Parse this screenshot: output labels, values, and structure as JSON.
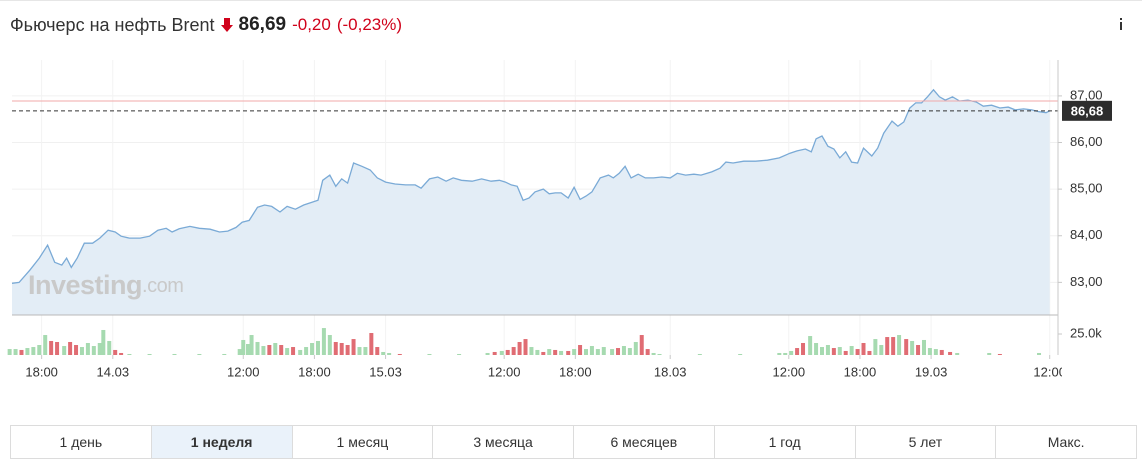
{
  "header": {
    "title": "Фьючерс на нефть Brent",
    "price": "86,69",
    "change": "-0,20",
    "change_pct": "(-0,23%)"
  },
  "watermark": {
    "brand": "Investing",
    "suffix": ".com"
  },
  "chart_data": [
    {
      "type": "area",
      "x": [
        -2.5,
        -1.9,
        -1.0,
        -0.2,
        0.5,
        1.1,
        1.7,
        2.1,
        2.5,
        3.0,
        3.6,
        4.3,
        4.9,
        5.6,
        6.2,
        6.7,
        7.4,
        8.3,
        9.1,
        9.8,
        10.5,
        11.0,
        11.6,
        12.5,
        13.3,
        14.2,
        15.0,
        15.7,
        16.4,
        16.9,
        17.5,
        18.2,
        18.8,
        19.4,
        20.1,
        20.7,
        21.4,
        22.1,
        22.8,
        23.3,
        23.7,
        24.3,
        24.8,
        25.3,
        25.8,
        26.3,
        27.0,
        27.7,
        28.3,
        29.0,
        29.8,
        30.7,
        31.5,
        32.0,
        32.7,
        33.4,
        34.1,
        34.7,
        35.4,
        36.3,
        37.1,
        37.9,
        38.6,
        39.1,
        39.6,
        40.1,
        40.6,
        41.1,
        41.6,
        42.3,
        42.8,
        43.3,
        43.8,
        44.4,
        44.9,
        45.4,
        45.9,
        46.4,
        47.1,
        47.8,
        48.2,
        48.7,
        49.2,
        49.7,
        50.3,
        50.9,
        51.6,
        52.3,
        53.0,
        53.6,
        54.3,
        55.0,
        55.6,
        56.5,
        57.2,
        57.7,
        58.3,
        59.2,
        60.2,
        61.2,
        62.2,
        63.1,
        63.7,
        64.4,
        64.9,
        65.3,
        65.8,
        66.3,
        66.8,
        67.3,
        67.8,
        68.3,
        68.8,
        69.3,
        70.0,
        70.5,
        71.0,
        71.7,
        72.2,
        72.7,
        73.2,
        73.7,
        74.2,
        74.7,
        75.2,
        75.7,
        76.2,
        76.8,
        77.4,
        78.1,
        78.8,
        79.4,
        80.1,
        80.8,
        81.5,
        82.1,
        82.8,
        83.5,
        84.1,
        84.7,
        85.0
      ],
      "values": [
        82.98,
        83.0,
        83.26,
        83.52,
        83.8,
        83.43,
        83.37,
        83.52,
        83.32,
        83.52,
        83.84,
        83.84,
        83.95,
        84.12,
        84.08,
        83.99,
        83.95,
        83.95,
        83.99,
        84.12,
        84.16,
        84.08,
        84.15,
        84.2,
        84.16,
        84.14,
        84.08,
        84.1,
        84.18,
        84.29,
        84.33,
        84.61,
        84.66,
        84.63,
        84.51,
        84.63,
        84.57,
        84.66,
        84.72,
        84.76,
        85.19,
        85.3,
        85.06,
        85.22,
        85.13,
        85.56,
        85.49,
        85.41,
        85.24,
        85.15,
        85.11,
        85.09,
        85.09,
        85.02,
        85.22,
        85.26,
        85.17,
        85.24,
        85.19,
        85.17,
        85.22,
        85.17,
        85.19,
        85.15,
        85.09,
        85.06,
        84.76,
        84.81,
        84.94,
        85.0,
        84.9,
        84.92,
        84.92,
        84.81,
        85.04,
        84.78,
        84.85,
        84.94,
        85.24,
        85.3,
        85.24,
        85.34,
        85.49,
        85.24,
        85.32,
        85.24,
        85.24,
        85.26,
        85.24,
        85.34,
        85.3,
        85.32,
        85.3,
        85.37,
        85.45,
        85.58,
        85.56,
        85.6,
        85.6,
        85.62,
        85.67,
        85.77,
        85.82,
        85.86,
        85.8,
        86.08,
        86.14,
        85.92,
        85.86,
        85.67,
        85.8,
        85.58,
        85.56,
        85.88,
        85.71,
        85.88,
        86.2,
        86.46,
        86.35,
        86.44,
        86.74,
        86.85,
        86.85,
        86.98,
        87.13,
        86.98,
        86.91,
        86.98,
        86.89,
        86.91,
        86.87,
        86.78,
        86.8,
        86.74,
        86.76,
        86.7,
        86.72,
        86.7,
        86.66,
        86.64,
        86.68
      ],
      "color": "#7aaad6",
      "fill": "#e3edf6",
      "xlim": [
        -2.5,
        85.7
      ],
      "ylim": [
        82.3,
        87.77
      ],
      "xticks": [
        {
          "value": 0,
          "label": "18:00"
        },
        {
          "value": 6,
          "label": "14.03"
        },
        {
          "value": 17,
          "label": "12:00"
        },
        {
          "value": 23,
          "label": "18:00"
        },
        {
          "value": 29,
          "label": "15.03"
        },
        {
          "value": 39,
          "label": "12:00"
        },
        {
          "value": 45,
          "label": "18:00"
        },
        {
          "value": 53,
          "label": "18.03"
        },
        {
          "value": 63,
          "label": "12:00"
        },
        {
          "value": 69,
          "label": "18:00"
        },
        {
          "value": 75,
          "label": "19.03"
        },
        {
          "value": 85,
          "label": "12:00"
        }
      ],
      "yticks": [
        {
          "value": 83,
          "label": "83,00"
        },
        {
          "value": 84,
          "label": "84,00"
        },
        {
          "value": 85,
          "label": "85,00"
        },
        {
          "value": 86,
          "label": "86,00"
        },
        {
          "value": 87,
          "label": "87,00"
        }
      ],
      "grid": true,
      "reference_line": {
        "value": 86.89,
        "color": "#f2a9a9"
      },
      "last_price": {
        "value": 86.68,
        "label": "86,68"
      }
    },
    {
      "type": "bar",
      "x": [
        -2.7,
        -2.2,
        -1.7,
        -1.2,
        -0.7,
        -0.2,
        0.3,
        0.8,
        1.3,
        1.9,
        2.4,
        2.9,
        3.4,
        3.9,
        4.4,
        4.9,
        5.2,
        5.7,
        6.2,
        6.7,
        7.4,
        9.1,
        11.2,
        13.3,
        15.4,
        16.7,
        17.0,
        17.4,
        17.7,
        18.2,
        18.7,
        19.2,
        19.7,
        20.2,
        20.7,
        21.2,
        21.8,
        22.3,
        22.8,
        23.3,
        23.8,
        24.3,
        24.8,
        25.3,
        25.8,
        26.3,
        26.8,
        27.3,
        27.8,
        28.3,
        28.8,
        29.3,
        30.2,
        32.7,
        35.2,
        37.6,
        38.2,
        38.8,
        39.3,
        39.8,
        40.3,
        40.8,
        41.3,
        41.8,
        42.3,
        42.8,
        43.3,
        43.8,
        44.4,
        44.9,
        45.4,
        45.9,
        46.4,
        46.9,
        47.4,
        48.1,
        48.6,
        49.1,
        49.6,
        50.1,
        50.6,
        51.1,
        51.6,
        52.1,
        55.5,
        58.9,
        62.2,
        62.7,
        63.2,
        63.7,
        64.2,
        64.8,
        65.3,
        65.8,
        66.3,
        66.8,
        67.3,
        67.8,
        68.3,
        68.8,
        69.3,
        69.8,
        70.3,
        70.8,
        71.3,
        71.8,
        72.3,
        72.9,
        73.4,
        73.9,
        74.4,
        74.9,
        75.4,
        75.9,
        76.6,
        77.2,
        79.9,
        80.8,
        84.1
      ],
      "values": [
        7.1,
        7.1,
        6,
        8.3,
        9.5,
        11.9,
        23.8,
        16.7,
        15.5,
        10.7,
        15.5,
        11.9,
        9.5,
        14.3,
        10.7,
        14.3,
        29.8,
        16.7,
        6,
        2.4,
        1.2,
        1.2,
        1.2,
        1.2,
        1.2,
        7.1,
        17.9,
        13.1,
        23.8,
        15.5,
        10.7,
        11.9,
        14.3,
        11.9,
        8.3,
        9.5,
        6,
        9.5,
        14.3,
        16.7,
        32.1,
        23.8,
        15.5,
        14.3,
        11.9,
        19,
        9.5,
        9.5,
        26.2,
        9.5,
        3.6,
        2.4,
        1.2,
        1.2,
        1.2,
        2.4,
        3.6,
        4.8,
        6,
        9.5,
        15.5,
        19,
        9.5,
        6,
        3.6,
        7.1,
        6,
        4.8,
        4.8,
        7.1,
        11.9,
        7.1,
        10.7,
        7.1,
        9.5,
        7.1,
        8.3,
        10.7,
        8.3,
        15.5,
        23.8,
        7.1,
        2.4,
        1.2,
        1.2,
        1.2,
        2.4,
        2.4,
        4.8,
        8.3,
        14.3,
        22.6,
        14.3,
        9.5,
        11.9,
        8.3,
        9.5,
        4.8,
        10.7,
        7.1,
        14.3,
        4.8,
        19,
        11.9,
        21.4,
        21.4,
        23.8,
        19,
        16.7,
        11.9,
        17.9,
        8.3,
        7.1,
        6,
        3.6,
        2.4,
        2.4,
        1.2,
        2.4
      ],
      "colors": [
        "#a6dab0",
        "#a6dab0",
        "#e06c73",
        "#a6dab0",
        "#a6dab0",
        "#a6dab0",
        "#a6dab0",
        "#e06c73",
        "#e06c73",
        "#a6dab0",
        "#e06c73",
        "#e06c73",
        "#a6dab0",
        "#a6dab0",
        "#a6dab0",
        "#a6dab0",
        "#a6dab0",
        "#a6dab0",
        "#e06c73",
        "#e06c73",
        "#a6dab0",
        "#a6dab0",
        "#a6dab0",
        "#a6dab0",
        "#a6dab0",
        "#a6dab0",
        "#a6dab0",
        "#a6dab0",
        "#a6dab0",
        "#a6dab0",
        "#a6dab0",
        "#e06c73",
        "#a6dab0",
        "#e06c73",
        "#a6dab0",
        "#e06c73",
        "#a6dab0",
        "#a6dab0",
        "#a6dab0",
        "#a6dab0",
        "#a6dab0",
        "#a6dab0",
        "#e06c73",
        "#e06c73",
        "#e06c73",
        "#e06c73",
        "#a6dab0",
        "#a6dab0",
        "#e06c73",
        "#e06c73",
        "#a6dab0",
        "#a6dab0",
        "#e06c73",
        "#a6dab0",
        "#a6dab0",
        "#a6dab0",
        "#e06c73",
        "#a6dab0",
        "#e06c73",
        "#e06c73",
        "#e06c73",
        "#e06c73",
        "#a6dab0",
        "#a6dab0",
        "#e06c73",
        "#a6dab0",
        "#e06c73",
        "#a6dab0",
        "#e06c73",
        "#a6dab0",
        "#e06c73",
        "#a6dab0",
        "#a6dab0",
        "#a6dab0",
        "#a6dab0",
        "#a6dab0",
        "#e06c73",
        "#a6dab0",
        "#a6dab0",
        "#a6dab0",
        "#e06c73",
        "#e06c73",
        "#a6dab0",
        "#a6dab0",
        "#a6dab0",
        "#a6dab0",
        "#a6dab0",
        "#a6dab0",
        "#a6dab0",
        "#e06c73",
        "#e06c73",
        "#a6dab0",
        "#a6dab0",
        "#a6dab0",
        "#a6dab0",
        "#e06c73",
        "#a6dab0",
        "#e06c73",
        "#a6dab0",
        "#e06c73",
        "#e06c73",
        "#e06c73",
        "#a6dab0",
        "#a6dab0",
        "#e06c73",
        "#e06c73",
        "#a6dab0",
        "#e06c73",
        "#a6dab0",
        "#e06c73",
        "#a6dab0",
        "#a6dab0",
        "#a6dab0",
        "#e06c73",
        "#e06c73",
        "#a6dab0",
        "#a6dab0",
        "#e06c73",
        "#a6dab0"
      ],
      "xlim": [
        -2.5,
        85.7
      ],
      "ylim": [
        0,
        41.7
      ],
      "yticks": [
        {
          "value": 25,
          "label": "25.0k"
        }
      ]
    }
  ],
  "range_buttons": {
    "labels": [
      "1 день",
      "1 неделя",
      "1 месяц",
      "3 месяца",
      "6 месяцев",
      "1 год",
      "5 лет",
      "Макс."
    ],
    "active": 1
  }
}
